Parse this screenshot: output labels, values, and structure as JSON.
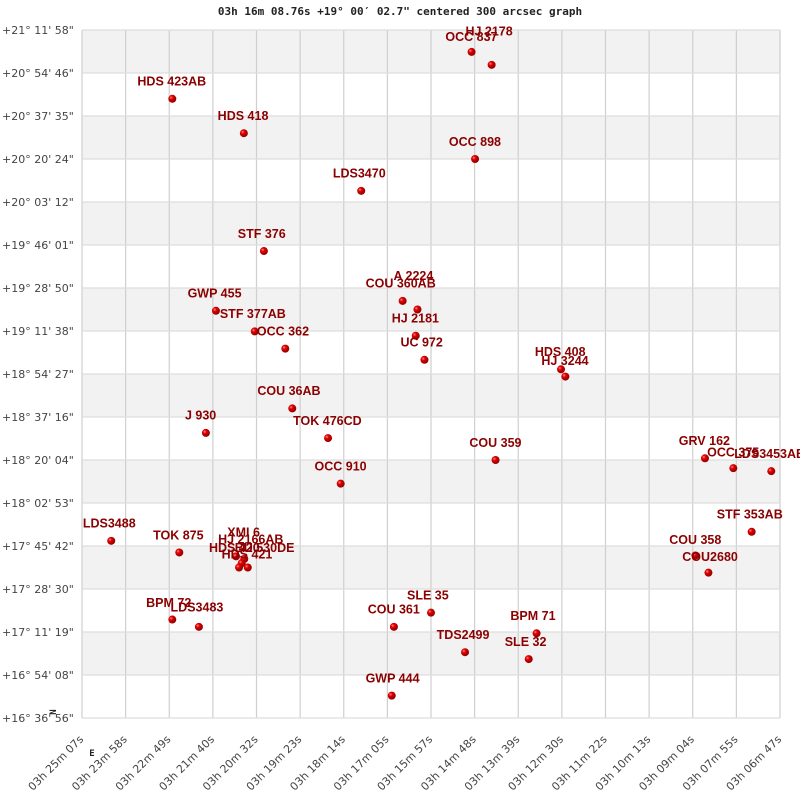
{
  "chart_data": {
    "type": "scatter",
    "title": "03h 16m 08.76s +19° 00′ 02.7\" centered 300 arcsec graph",
    "xlabel": "",
    "ylabel": "",
    "grid": true,
    "x_axis": {
      "direction": "RA decreasing left to right",
      "range_units": "grid steps",
      "xlim": [
        0,
        16
      ],
      "tick_labels": [
        "03h 25m 07s",
        "03h 23m 58s",
        "03h 22m 49s",
        "03h 21m 40s",
        "03h 20m 32s",
        "03h 19m 23s",
        "03h 18m 14s",
        "03h 17m 05s",
        "03h 15m 57s",
        "03h 14m 48s",
        "03h 13m 39s",
        "03h 12m 30s",
        "03h 11m 22s",
        "03h 10m 13s",
        "03h 09m 04s",
        "03h 07m 55s",
        "03h 06m 47s"
      ]
    },
    "y_axis": {
      "direction": "Dec decreasing top to bottom",
      "range_units": "grid steps",
      "ylim": [
        0,
        16
      ],
      "tick_labels": [
        "+21° 11' 58\"",
        "+20° 54' 46\"",
        "+20° 37' 35\"",
        "+20° 20' 24\"",
        "+20° 03' 12\"",
        "+19° 46' 01\"",
        "+19° 28' 50\"",
        "+19° 11' 38\"",
        "+18° 54' 27\"",
        "+18° 37' 16\"",
        "+18° 20' 04\"",
        "+18° 02' 53\"",
        "+17° 45' 42\"",
        "+17° 28' 30\"",
        "+17° 11' 19\"",
        "+16° 54' 08\"",
        "+16° 36' 56\""
      ]
    },
    "compass": {
      "north": "N",
      "east": "E"
    },
    "point_color": "#cc0000",
    "label_color": "#8b0000",
    "points": [
      {
        "name": "OCC 837",
        "x": 8.93,
        "y": 0.51,
        "lx": -0.6,
        "ly": -0.35
      },
      {
        "name": "HJ 2178",
        "x": 9.39,
        "y": 0.81,
        "lx": -0.6,
        "ly": -0.78
      },
      {
        "name": "HDS 423AB",
        "x": 2.07,
        "y": 1.6,
        "lx": -0.8,
        "ly": -0.4
      },
      {
        "name": "HDS 418",
        "x": 3.71,
        "y": 2.4,
        "lx": -0.6,
        "ly": -0.4
      },
      {
        "name": "OCC 898",
        "x": 9.01,
        "y": 3.0,
        "lx": -0.6,
        "ly": -0.4
      },
      {
        "name": "LDS3470",
        "x": 6.4,
        "y": 3.74,
        "lx": -0.65,
        "ly": -0.4
      },
      {
        "name": "STF 376",
        "x": 4.17,
        "y": 5.14,
        "lx": -0.6,
        "ly": -0.4
      },
      {
        "name": "COU 360AB",
        "x": 7.35,
        "y": 6.3,
        "lx": -0.85,
        "ly": -0.4
      },
      {
        "name": "A  2224",
        "x": 7.69,
        "y": 6.5,
        "lx": -0.55,
        "ly": -0.78
      },
      {
        "name": "GWP 455",
        "x": 3.07,
        "y": 6.53,
        "lx": -0.65,
        "ly": -0.4
      },
      {
        "name": "STF 377AB",
        "x": 3.96,
        "y": 7.01,
        "lx": -0.8,
        "ly": -0.4
      },
      {
        "name": "HJ 2181",
        "x": 7.65,
        "y": 7.11,
        "lx": -0.55,
        "ly": -0.4
      },
      {
        "name": "OCC 362",
        "x": 4.66,
        "y": 7.41,
        "lx": -0.65,
        "ly": -0.4
      },
      {
        "name": "UC  972",
        "x": 7.85,
        "y": 7.67,
        "lx": -0.55,
        "ly": -0.4
      },
      {
        "name": "HDS 408",
        "x": 10.98,
        "y": 7.89,
        "lx": -0.6,
        "ly": -0.4
      },
      {
        "name": "HJ 3244",
        "x": 11.08,
        "y": 8.06,
        "lx": -0.55,
        "ly": -0.36
      },
      {
        "name": "COU  36AB",
        "x": 4.82,
        "y": 8.8,
        "lx": -0.8,
        "ly": -0.4
      },
      {
        "name": "J   930",
        "x": 2.84,
        "y": 9.37,
        "lx": -0.48,
        "ly": -0.4
      },
      {
        "name": "TOK 476CD",
        "x": 5.64,
        "y": 9.49,
        "lx": -0.8,
        "ly": -0.4
      },
      {
        "name": "GRV 162",
        "x": 14.28,
        "y": 9.96,
        "lx": -0.6,
        "ly": -0.4
      },
      {
        "name": "COU 359",
        "x": 9.48,
        "y": 10.0,
        "lx": -0.6,
        "ly": -0.4
      },
      {
        "name": "OCC 375",
        "x": 14.93,
        "y": 10.19,
        "lx": -0.6,
        "ly": -0.36
      },
      {
        "name": "LDS3453AB",
        "x": 15.8,
        "y": 10.26,
        "lx": -0.85,
        "ly": -0.4
      },
      {
        "name": "OCC 910",
        "x": 5.93,
        "y": 10.55,
        "lx": -0.6,
        "ly": -0.4
      },
      {
        "name": "STF 353AB",
        "x": 15.35,
        "y": 11.67,
        "lx": -0.8,
        "ly": -0.4
      },
      {
        "name": "LDS3488",
        "x": 0.67,
        "y": 11.88,
        "lx": -0.65,
        "ly": -0.4
      },
      {
        "name": "TOK 875",
        "x": 2.23,
        "y": 12.15,
        "lx": -0.6,
        "ly": -0.4
      },
      {
        "name": "XMI  6",
        "x": 3.53,
        "y": 12.24,
        "lx": -0.2,
        "ly": -0.55
      },
      {
        "name": "HJ 2166AB",
        "x": 3.72,
        "y": 12.3,
        "lx": -0.6,
        "ly": -0.45
      },
      {
        "name": "HDS 420",
        "x": 3.66,
        "y": 12.4,
        "lx": -0.75,
        "ly": -0.35
      },
      {
        "name": "BU  530DE",
        "x": 3.8,
        "y": 12.5,
        "lx": -0.3,
        "ly": -0.45
      },
      {
        "name": "HDS 421",
        "x": 3.6,
        "y": 12.5,
        "lx": -0.4,
        "ly": -0.3
      },
      {
        "name": "COU 358",
        "x": 14.06,
        "y": 12.22,
        "lx": -0.6,
        "ly": -0.36
      },
      {
        "name": "COU2680",
        "x": 14.36,
        "y": 12.62,
        "lx": -0.6,
        "ly": -0.36
      },
      {
        "name": "BPM  72",
        "x": 2.07,
        "y": 13.71,
        "lx": -0.6,
        "ly": -0.38
      },
      {
        "name": "LDS3483",
        "x": 2.68,
        "y": 13.88,
        "lx": -0.65,
        "ly": -0.45
      },
      {
        "name": "SLE  35",
        "x": 8.0,
        "y": 13.55,
        "lx": -0.55,
        "ly": -0.4
      },
      {
        "name": "COU 361",
        "x": 7.15,
        "y": 13.88,
        "lx": -0.6,
        "ly": -0.4
      },
      {
        "name": "BPM  71",
        "x": 10.42,
        "y": 14.03,
        "lx": -0.6,
        "ly": -0.4
      },
      {
        "name": "TDS2499",
        "x": 8.78,
        "y": 14.47,
        "lx": -0.65,
        "ly": -0.4
      },
      {
        "name": "SLE  32",
        "x": 10.24,
        "y": 14.63,
        "lx": -0.55,
        "ly": -0.4
      },
      {
        "name": "GWP 444",
        "x": 7.1,
        "y": 15.48,
        "lx": -0.6,
        "ly": -0.4
      }
    ]
  }
}
